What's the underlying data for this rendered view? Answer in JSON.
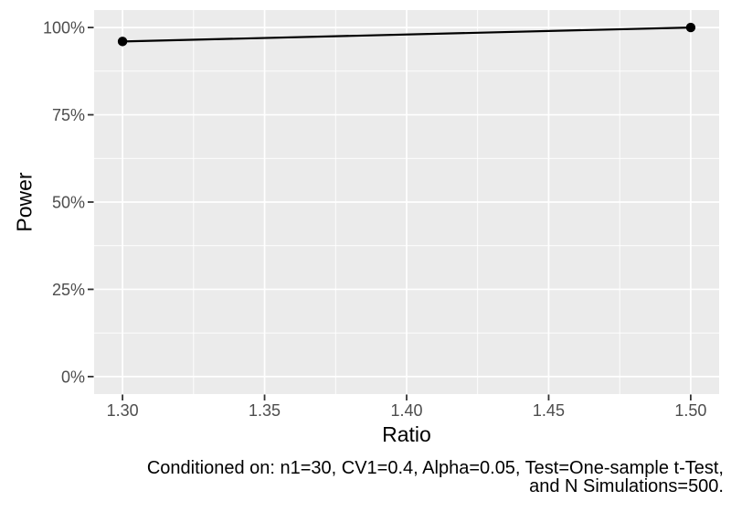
{
  "chart_data": {
    "type": "line",
    "title": "",
    "xlabel": "Ratio",
    "ylabel": "Power",
    "x": [
      1.3,
      1.5
    ],
    "series": [
      {
        "name": "Power",
        "values": [
          0.96,
          1.0
        ]
      }
    ],
    "xlim": [
      1.29,
      1.51
    ],
    "ylim": [
      -0.05,
      1.05
    ],
    "x_ticks": [
      {
        "value": 1.3,
        "label": "1.30"
      },
      {
        "value": 1.35,
        "label": "1.35"
      },
      {
        "value": 1.4,
        "label": "1.40"
      },
      {
        "value": 1.45,
        "label": "1.45"
      },
      {
        "value": 1.5,
        "label": "1.50"
      }
    ],
    "y_ticks": [
      {
        "value": 0.0,
        "label": "0%"
      },
      {
        "value": 0.25,
        "label": "25%"
      },
      {
        "value": 0.5,
        "label": "50%"
      },
      {
        "value": 0.75,
        "label": "75%"
      },
      {
        "value": 1.0,
        "label": "100%"
      }
    ],
    "grid": "white major and minor gridlines on grey panel",
    "legend": "none",
    "theme": {
      "panel_bg": "#EBEBEB",
      "grid_color": "#FFFFFF",
      "tick_mark_color": "#333333",
      "tick_label_color": "#4D4D4D",
      "axis_title_color": "#000000",
      "line_color": "#000000",
      "point_color": "#000000"
    }
  },
  "caption": {
    "line1": "Conditioned on: n1=30, CV1=0.4, Alpha=0.05, Test=One-sample t-Test,",
    "line2": "and N Simulations=500."
  }
}
